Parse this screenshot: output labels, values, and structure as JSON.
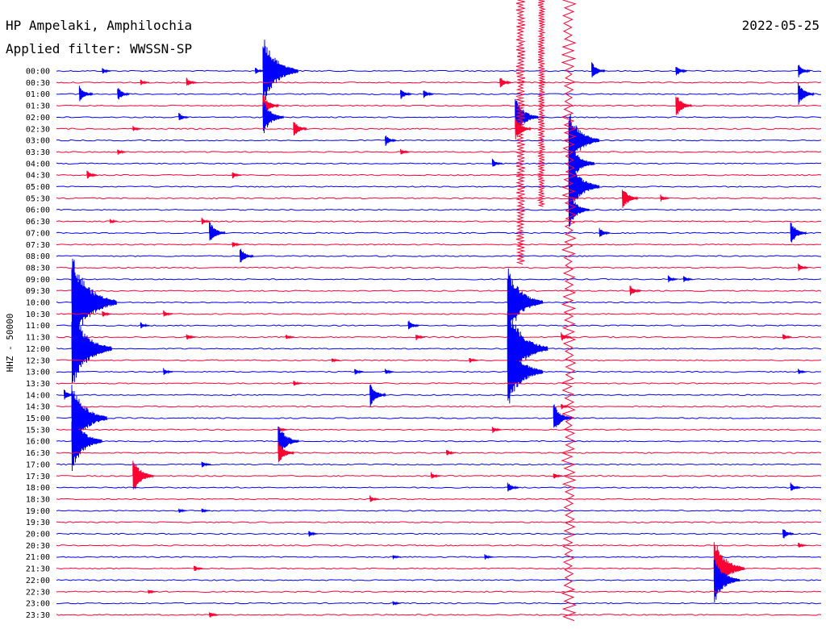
{
  "header": {
    "station": "HP Ampelaki, Amphilochia",
    "filter": "Applied filter: WWSSN-SP",
    "date": "2022-05-25"
  },
  "channel_label": "HHZ - 50000",
  "colors": {
    "odd": "#0000ff",
    "even": "#ff0033",
    "text": "#000000",
    "background": "#ffffff"
  },
  "chart_data": {
    "type": "line",
    "title": "HP Ampelaki, Amphilochia",
    "subtitle": "Applied filter: WWSSN-SP",
    "date": "2022-05-25",
    "ylabel": "HHZ - 50000",
    "xlabel": "",
    "row_labels": [
      "00:00",
      "00:30",
      "01:00",
      "01:30",
      "02:00",
      "02:30",
      "03:00",
      "03:30",
      "04:00",
      "04:30",
      "05:00",
      "05:30",
      "06:00",
      "06:30",
      "07:00",
      "07:30",
      "08:00",
      "08:30",
      "09:00",
      "09:30",
      "10:00",
      "10:30",
      "11:00",
      "11:30",
      "12:00",
      "12:30",
      "13:00",
      "13:30",
      "14:00",
      "14:30",
      "15:00",
      "15:30",
      "16:00",
      "16:30",
      "17:00",
      "17:30",
      "18:00",
      "18:30",
      "19:00",
      "19:30",
      "20:00",
      "20:30",
      "21:00",
      "21:30",
      "22:00",
      "22:30",
      "23:00",
      "23:30"
    ],
    "series_color_cycle": [
      "blue",
      "red"
    ],
    "events": [
      {
        "row": 0,
        "x": 0.06,
        "amp": 0.5
      },
      {
        "row": 0,
        "x": 0.26,
        "amp": 0.6
      },
      {
        "row": 0,
        "x": 0.27,
        "amp": 6.0
      },
      {
        "row": 0,
        "x": 0.7,
        "amp": 1.5
      },
      {
        "row": 0,
        "x": 0.81,
        "amp": 1.0
      },
      {
        "row": 0,
        "x": 0.97,
        "amp": 1.2
      },
      {
        "row": 1,
        "x": 0.11,
        "amp": 0.5
      },
      {
        "row": 1,
        "x": 0.17,
        "amp": 0.8
      },
      {
        "row": 1,
        "x": 0.58,
        "amp": 1.0
      },
      {
        "row": 2,
        "x": 0.03,
        "amp": 1.5
      },
      {
        "row": 2,
        "x": 0.08,
        "amp": 1.2
      },
      {
        "row": 2,
        "x": 0.45,
        "amp": 1.0
      },
      {
        "row": 2,
        "x": 0.48,
        "amp": 0.8
      },
      {
        "row": 2,
        "x": 0.97,
        "amp": 2.0
      },
      {
        "row": 3,
        "x": 0.27,
        "amp": 2.0
      },
      {
        "row": 3,
        "x": 0.81,
        "amp": 2.0
      },
      {
        "row": 4,
        "x": 0.27,
        "amp": 3.0
      },
      {
        "row": 4,
        "x": 0.16,
        "amp": 0.8
      },
      {
        "row": 4,
        "x": 0.6,
        "amp": 3.5
      },
      {
        "row": 5,
        "x": 0.31,
        "amp": 1.5
      },
      {
        "row": 5,
        "x": 0.6,
        "amp": 2.0
      },
      {
        "row": 5,
        "x": 0.1,
        "amp": 0.5
      },
      {
        "row": 6,
        "x": 0.43,
        "amp": 1.0
      },
      {
        "row": 6,
        "x": 0.67,
        "amp": 5.0
      },
      {
        "row": 7,
        "x": 0.08,
        "amp": 0.5
      },
      {
        "row": 7,
        "x": 0.45,
        "amp": 0.6
      },
      {
        "row": 8,
        "x": 0.57,
        "amp": 0.8
      },
      {
        "row": 8,
        "x": 0.67,
        "amp": 4.0
      },
      {
        "row": 9,
        "x": 0.04,
        "amp": 0.8
      },
      {
        "row": 9,
        "x": 0.23,
        "amp": 0.6
      },
      {
        "row": 10,
        "x": 0.67,
        "amp": 5.0
      },
      {
        "row": 11,
        "x": 0.74,
        "amp": 2.0
      },
      {
        "row": 11,
        "x": 0.79,
        "amp": 0.6
      },
      {
        "row": 12,
        "x": 0.67,
        "amp": 3.0
      },
      {
        "row": 13,
        "x": 0.07,
        "amp": 0.4
      },
      {
        "row": 13,
        "x": 0.19,
        "amp": 0.6
      },
      {
        "row": 14,
        "x": 0.2,
        "amp": 2.0
      },
      {
        "row": 14,
        "x": 0.71,
        "amp": 0.9
      },
      {
        "row": 14,
        "x": 0.96,
        "amp": 2.0
      },
      {
        "row": 15,
        "x": 0.23,
        "amp": 0.6
      },
      {
        "row": 16,
        "x": 0.24,
        "amp": 1.5
      },
      {
        "row": 17,
        "x": 0.97,
        "amp": 0.8
      },
      {
        "row": 18,
        "x": 0.8,
        "amp": 0.6
      },
      {
        "row": 18,
        "x": 0.82,
        "amp": 0.6
      },
      {
        "row": 19,
        "x": 0.75,
        "amp": 1.0
      },
      {
        "row": 20,
        "x": 0.02,
        "amp": 8.0
      },
      {
        "row": 20,
        "x": 0.59,
        "amp": 6.0
      },
      {
        "row": 21,
        "x": 0.06,
        "amp": 0.6
      },
      {
        "row": 21,
        "x": 0.14,
        "amp": 0.6
      },
      {
        "row": 22,
        "x": 0.11,
        "amp": 0.6
      },
      {
        "row": 22,
        "x": 0.46,
        "amp": 1.0
      },
      {
        "row": 23,
        "x": 0.17,
        "amp": 0.6
      },
      {
        "row": 23,
        "x": 0.3,
        "amp": 0.5
      },
      {
        "row": 23,
        "x": 0.47,
        "amp": 0.6
      },
      {
        "row": 23,
        "x": 0.66,
        "amp": 0.8
      },
      {
        "row": 23,
        "x": 0.95,
        "amp": 0.6
      },
      {
        "row": 24,
        "x": 0.02,
        "amp": 7.0
      },
      {
        "row": 24,
        "x": 0.59,
        "amp": 7.0
      },
      {
        "row": 25,
        "x": 0.36,
        "amp": 0.4
      },
      {
        "row": 25,
        "x": 0.54,
        "amp": 0.5
      },
      {
        "row": 26,
        "x": 0.14,
        "amp": 0.6
      },
      {
        "row": 26,
        "x": 0.39,
        "amp": 0.6
      },
      {
        "row": 26,
        "x": 0.43,
        "amp": 0.5
      },
      {
        "row": 26,
        "x": 0.59,
        "amp": 6.0
      },
      {
        "row": 26,
        "x": 0.97,
        "amp": 0.5
      },
      {
        "row": 27,
        "x": 0.31,
        "amp": 0.5
      },
      {
        "row": 28,
        "x": 0.01,
        "amp": 1.0
      },
      {
        "row": 28,
        "x": 0.41,
        "amp": 2.0
      },
      {
        "row": 29,
        "x": 0.66,
        "amp": 0.5
      },
      {
        "row": 30,
        "x": 0.02,
        "amp": 6.0
      },
      {
        "row": 30,
        "x": 0.65,
        "amp": 2.5
      },
      {
        "row": 31,
        "x": 0.57,
        "amp": 0.6
      },
      {
        "row": 31,
        "x": 0.29,
        "amp": 0.6
      },
      {
        "row": 32,
        "x": 0.02,
        "amp": 5.0
      },
      {
        "row": 32,
        "x": 0.29,
        "amp": 3.0
      },
      {
        "row": 33,
        "x": 0.29,
        "amp": 2.0
      },
      {
        "row": 33,
        "x": 0.51,
        "amp": 0.6
      },
      {
        "row": 34,
        "x": 0.19,
        "amp": 0.6
      },
      {
        "row": 35,
        "x": 0.1,
        "amp": 3.0
      },
      {
        "row": 35,
        "x": 0.49,
        "amp": 0.6
      },
      {
        "row": 35,
        "x": 0.65,
        "amp": 0.6
      },
      {
        "row": 36,
        "x": 0.59,
        "amp": 1.0
      },
      {
        "row": 36,
        "x": 0.96,
        "amp": 0.8
      },
      {
        "row": 37,
        "x": 0.41,
        "amp": 0.6
      },
      {
        "row": 38,
        "x": 0.16,
        "amp": 0.4
      },
      {
        "row": 38,
        "x": 0.19,
        "amp": 0.4
      },
      {
        "row": 40,
        "x": 0.33,
        "amp": 0.6
      },
      {
        "row": 40,
        "x": 0.95,
        "amp": 1.0
      },
      {
        "row": 41,
        "x": 0.97,
        "amp": 0.5
      },
      {
        "row": 42,
        "x": 0.56,
        "amp": 0.5
      },
      {
        "row": 42,
        "x": 0.44,
        "amp": 0.4
      },
      {
        "row": 43,
        "x": 0.18,
        "amp": 0.6
      },
      {
        "row": 43,
        "x": 0.86,
        "amp": 5.0
      },
      {
        "row": 44,
        "x": 0.86,
        "amp": 4.0
      },
      {
        "row": 45,
        "x": 0.12,
        "amp": 0.4
      },
      {
        "row": 46,
        "x": 0.44,
        "amp": 0.4
      },
      {
        "row": 47,
        "x": 0.2,
        "amp": 0.6
      }
    ],
    "major_events": [
      {
        "row": 0,
        "x": 0.67,
        "label_amp": 12,
        "span_rows": [
          0,
          47
        ],
        "color": "red"
      },
      {
        "row": 0,
        "x": 0.607,
        "label_amp": 8,
        "span_rows": [
          0,
          16
        ],
        "color": "red"
      },
      {
        "row": 2,
        "x": 0.634,
        "label_amp": 6,
        "span_rows": [
          0,
          11
        ],
        "color": "red"
      }
    ]
  }
}
